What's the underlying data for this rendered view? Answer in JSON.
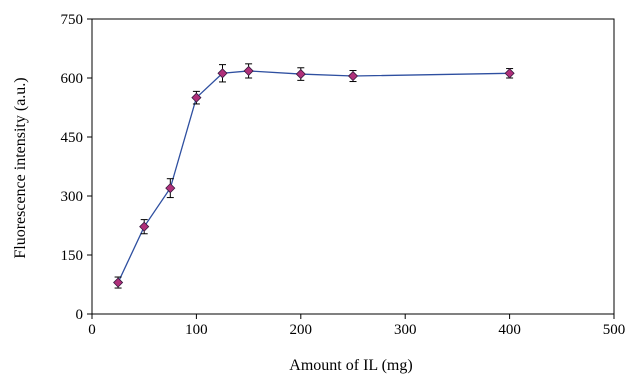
{
  "chart_data": {
    "type": "scatter",
    "xlabel": "Amount of IL (mg)",
    "ylabel": "Fluorescence intensity (a.u.)",
    "xlim": [
      0,
      500
    ],
    "ylim": [
      0,
      750
    ],
    "xticks": [
      0,
      100,
      200,
      300,
      400,
      500
    ],
    "yticks": [
      0,
      150,
      300,
      450,
      600,
      750
    ],
    "grid": false,
    "legend": "none",
    "series": [
      {
        "x": [
          25,
          50,
          75,
          100,
          125,
          150,
          200,
          250,
          400
        ],
        "y": [
          80,
          222,
          320,
          550,
          612,
          618,
          610,
          605,
          612
        ],
        "error": [
          14,
          18,
          24,
          16,
          22,
          18,
          16,
          14,
          12
        ]
      }
    ],
    "colors": {
      "line": "#2e4fa0",
      "marker": "#b0307a",
      "error_bar": "#000000"
    }
  }
}
